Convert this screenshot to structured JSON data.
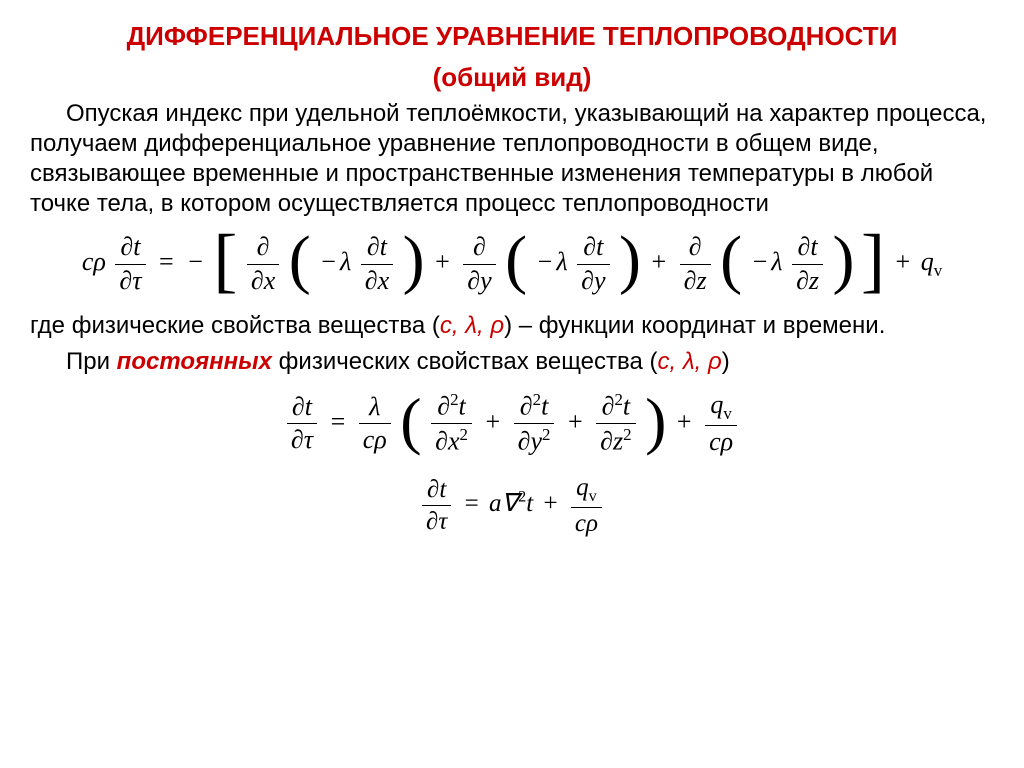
{
  "colors": {
    "accent": "#cc0000",
    "text": "#000000",
    "background": "#ffffff"
  },
  "typography": {
    "body_fontsize": 24,
    "title_fontsize": 26,
    "eq_fontsize": 26,
    "font_family_body": "Arial",
    "font_family_math": "Times New Roman"
  },
  "title1": "ДИФФЕРЕНЦИАЛЬНОЕ УРАВНЕНИЕ ТЕПЛОПРОВОДНОСТИ",
  "title2": "(общий вид)",
  "para1_a": "Опуская индекс при удельной теплоёмкости, указывающий на характер процесса, получаем дифференциальное уравнение теплопроводности в общем виде, связывающее временные и пространственные изменения температуры в любой точке тела, в котором осуществляется процесс теплопроводности",
  "para2_a": "где физические свойства вещества (",
  "para2_vars": "c, λ, ρ",
  "para2_b": ") – функции координат и времени.",
  "para3_a": "При ",
  "para3_em": "постоянных",
  "para3_b": " физических свойствах вещества (",
  "para3_vars": "c, λ, ρ",
  "para3_c": ")",
  "math": {
    "c": "c",
    "rho": "ρ",
    "lambda": "λ",
    "partial": "∂",
    "t": "t",
    "tau": "τ",
    "x": "x",
    "y": "y",
    "z": "z",
    "q": "q",
    "v": "v",
    "a": "a",
    "nabla2": "∇",
    "two": "2",
    "eq": "=",
    "plus": "+",
    "minus": "−"
  }
}
